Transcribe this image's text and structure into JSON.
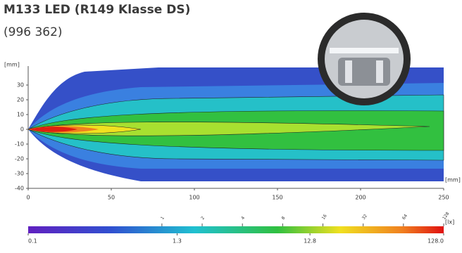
{
  "header": {
    "title": "M133 LED (R149 Klasse DS)",
    "subtitle": "(996 362)"
  },
  "plot": {
    "y_unit": "[mm]",
    "x_unit": "[mm]",
    "xlim": [
      0,
      250
    ],
    "xticks": [
      0,
      50,
      100,
      150,
      200,
      250
    ],
    "ylim": [
      -40,
      40
    ],
    "yticks": [
      30,
      20,
      10,
      0,
      -10,
      -20,
      -30,
      -40
    ],
    "colorbar": {
      "unit": "[lx]",
      "scale": "log",
      "lim": [
        0.1,
        128
      ],
      "ticks": [
        0.1,
        1.3,
        12.8,
        {
          "value": 128,
          "label": "128.0"
        }
      ],
      "contours": [
        1,
        2,
        4,
        8,
        16,
        32,
        64,
        128
      ]
    }
  }
}
